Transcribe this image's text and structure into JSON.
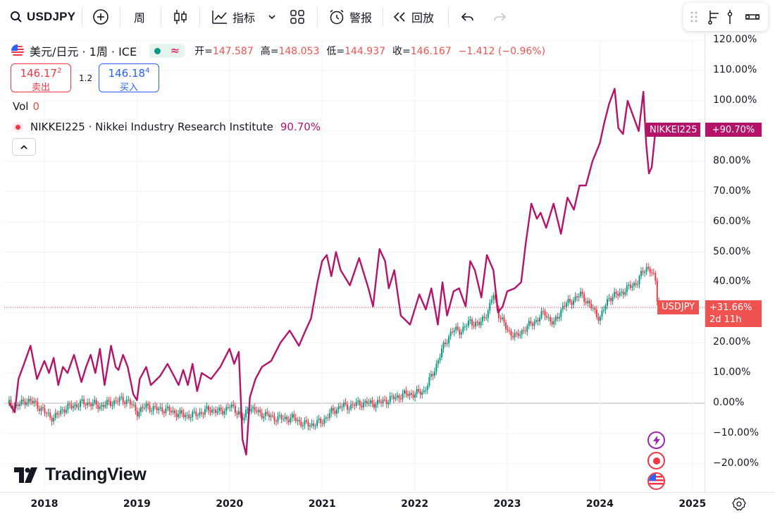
{
  "toolbar": {
    "symbol": "USDJPY",
    "interval": "周",
    "indicators_label": "指标",
    "alert_label": "警报",
    "replay_label": "回放"
  },
  "legend": {
    "pair_title": "美元/日元 · 1周 · ICE",
    "open_label": "开=",
    "open": "147.587",
    "high_label": "高=",
    "high": "148.053",
    "low_label": "低=",
    "low": "144.937",
    "close_label": "收=",
    "close": "146.167",
    "change": "−1.412 (−0.96%)",
    "volume_label": "Vol",
    "volume": "0",
    "compare_symbol": "NIKKEI225 · Nikkei Industry Research Institute",
    "compare_value": "90.70%"
  },
  "trade": {
    "sell_price": "146.17",
    "sell_price_sup": "2",
    "sell_label": "卖出",
    "spread": "1.2",
    "buy_price": "146.18",
    "buy_price_sup": "4",
    "buy_label": "买入"
  },
  "price_labels": {
    "nikkei_name": "NIKKEI225",
    "nikkei_value": "+90.70%",
    "usdjpy_name": "USDJPY",
    "usdjpy_value": "+31.66%",
    "countdown": "2d 11h"
  },
  "watermark": "TradingView",
  "colors": {
    "nikkei_line": "#b5126a",
    "candle_up": "#089981",
    "candle_down": "#f23645",
    "grid": "#f0f3fa"
  },
  "chart_data": {
    "type": "line",
    "y_ticks": [
      "120.00%",
      "110.00%",
      "100.00%",
      "90.00%",
      "80.00%",
      "70.00%",
      "60.00%",
      "50.00%",
      "40.00%",
      "30.00%",
      "20.00%",
      "10.00%",
      "0.00%",
      "−10.00%",
      "−20.00%"
    ],
    "x_ticks": [
      "2018",
      "2019",
      "2020",
      "2021",
      "2022",
      "2023",
      "2024",
      "2025"
    ],
    "ylim": [
      -22,
      120
    ],
    "xlim": [
      2017.6,
      2025.25
    ],
    "series": [
      {
        "name": "NIKKEI225",
        "kind": "line",
        "x": [
          2017.62,
          2017.68,
          2017.72,
          2017.78,
          2017.85,
          2017.92,
          2018.0,
          2018.05,
          2018.1,
          2018.15,
          2018.2,
          2018.25,
          2018.32,
          2018.4,
          2018.45,
          2018.5,
          2018.55,
          2018.6,
          2018.65,
          2018.72,
          2018.77,
          2018.8,
          2018.85,
          2018.9,
          2018.96,
          2019.0,
          2019.03,
          2019.1,
          2019.15,
          2019.25,
          2019.33,
          2019.4,
          2019.45,
          2019.5,
          2019.55,
          2019.6,
          2019.65,
          2019.7,
          2019.8,
          2019.9,
          2020.0,
          2020.05,
          2020.1,
          2020.14,
          2020.18,
          2020.22,
          2020.28,
          2020.35,
          2020.45,
          2020.55,
          2020.65,
          2020.75,
          2020.82,
          2020.88,
          2020.95,
          2021.0,
          2021.05,
          2021.1,
          2021.15,
          2021.2,
          2021.3,
          2021.4,
          2021.5,
          2021.55,
          2021.62,
          2021.68,
          2021.72,
          2021.78,
          2021.85,
          2021.95,
          2022.05,
          2022.12,
          2022.18,
          2022.25,
          2022.3,
          2022.35,
          2022.42,
          2022.48,
          2022.55,
          2022.6,
          2022.65,
          2022.72,
          2022.78,
          2022.85,
          2022.9,
          2022.95,
          2023.0,
          2023.08,
          2023.15,
          2023.2,
          2023.26,
          2023.32,
          2023.36,
          2023.42,
          2023.5,
          2023.58,
          2023.65,
          2023.72,
          2023.78,
          2023.85,
          2023.92,
          2024.0,
          2024.05,
          2024.1,
          2024.16,
          2024.2,
          2024.25,
          2024.3,
          2024.36,
          2024.42,
          2024.47,
          2024.5,
          2024.53,
          2024.56,
          2024.6,
          2024.62
        ],
        "values": [
          0,
          -3,
          8,
          13,
          19,
          8,
          14,
          10,
          15,
          6,
          12,
          10,
          16,
          7,
          12,
          16,
          10,
          18,
          6,
          19,
          12,
          11,
          16,
          12,
          3,
          1,
          8,
          12,
          6,
          9,
          13,
          9,
          6,
          11,
          6,
          13,
          4,
          10,
          8,
          12,
          18,
          13,
          17,
          -12,
          -17,
          2,
          8,
          12,
          14,
          20,
          24,
          19,
          24,
          28,
          40,
          47,
          49,
          42,
          50,
          44,
          39,
          48,
          38,
          32,
          51,
          47,
          38,
          44,
          29,
          26,
          36,
          31,
          38,
          26,
          40,
          29,
          37,
          38,
          32,
          47,
          44,
          35,
          49,
          44,
          30,
          32,
          37,
          38,
          40,
          53,
          66,
          61,
          63,
          58,
          66,
          56,
          68,
          64,
          72,
          72,
          80,
          86,
          93,
          99,
          104,
          91,
          89,
          100,
          95,
          90,
          103,
          86,
          76,
          78,
          90,
          91
        ]
      },
      {
        "name": "USDJPY",
        "kind": "candles",
        "x": [
          2017.6,
          2017.7,
          2017.8,
          2017.9,
          2018.0,
          2018.1,
          2018.2,
          2018.3,
          2018.4,
          2018.5,
          2018.6,
          2018.7,
          2018.8,
          2018.9,
          2019.0,
          2019.1,
          2019.2,
          2019.3,
          2019.4,
          2019.5,
          2019.6,
          2019.7,
          2019.8,
          2019.9,
          2020.0,
          2020.1,
          2020.15,
          2020.2,
          2020.3,
          2020.4,
          2020.5,
          2020.6,
          2020.7,
          2020.8,
          2020.9,
          2021.0,
          2021.1,
          2021.2,
          2021.3,
          2021.4,
          2021.5,
          2021.6,
          2021.7,
          2021.8,
          2021.9,
          2022.0,
          2022.1,
          2022.2,
          2022.3,
          2022.4,
          2022.5,
          2022.6,
          2022.7,
          2022.8,
          2022.85,
          2022.9,
          2022.95,
          2023.0,
          2023.1,
          2023.2,
          2023.3,
          2023.4,
          2023.5,
          2023.6,
          2023.7,
          2023.8,
          2023.9,
          2024.0,
          2024.1,
          2024.2,
          2024.3,
          2024.4,
          2024.5,
          2024.55,
          2024.6,
          2024.63
        ],
        "values": [
          0,
          -1,
          1,
          0,
          -3,
          -5,
          -2,
          -1,
          0,
          0,
          -1,
          0,
          1,
          1,
          -3,
          -1,
          -2,
          -2,
          -3,
          -4,
          -4,
          -3,
          -2,
          -3,
          -1,
          -3,
          -6,
          -1,
          -3,
          -4,
          -5,
          -5,
          -5,
          -7,
          -7,
          -6,
          -3,
          -1,
          -1,
          0,
          0,
          0,
          1,
          2,
          3,
          3,
          4,
          10,
          18,
          24,
          24,
          27,
          26,
          31,
          36,
          30,
          27,
          24,
          22,
          25,
          27,
          30,
          26,
          32,
          34,
          36,
          32,
          28,
          35,
          36,
          38,
          40,
          45,
          44,
          40,
          31.66
        ]
      }
    ]
  }
}
